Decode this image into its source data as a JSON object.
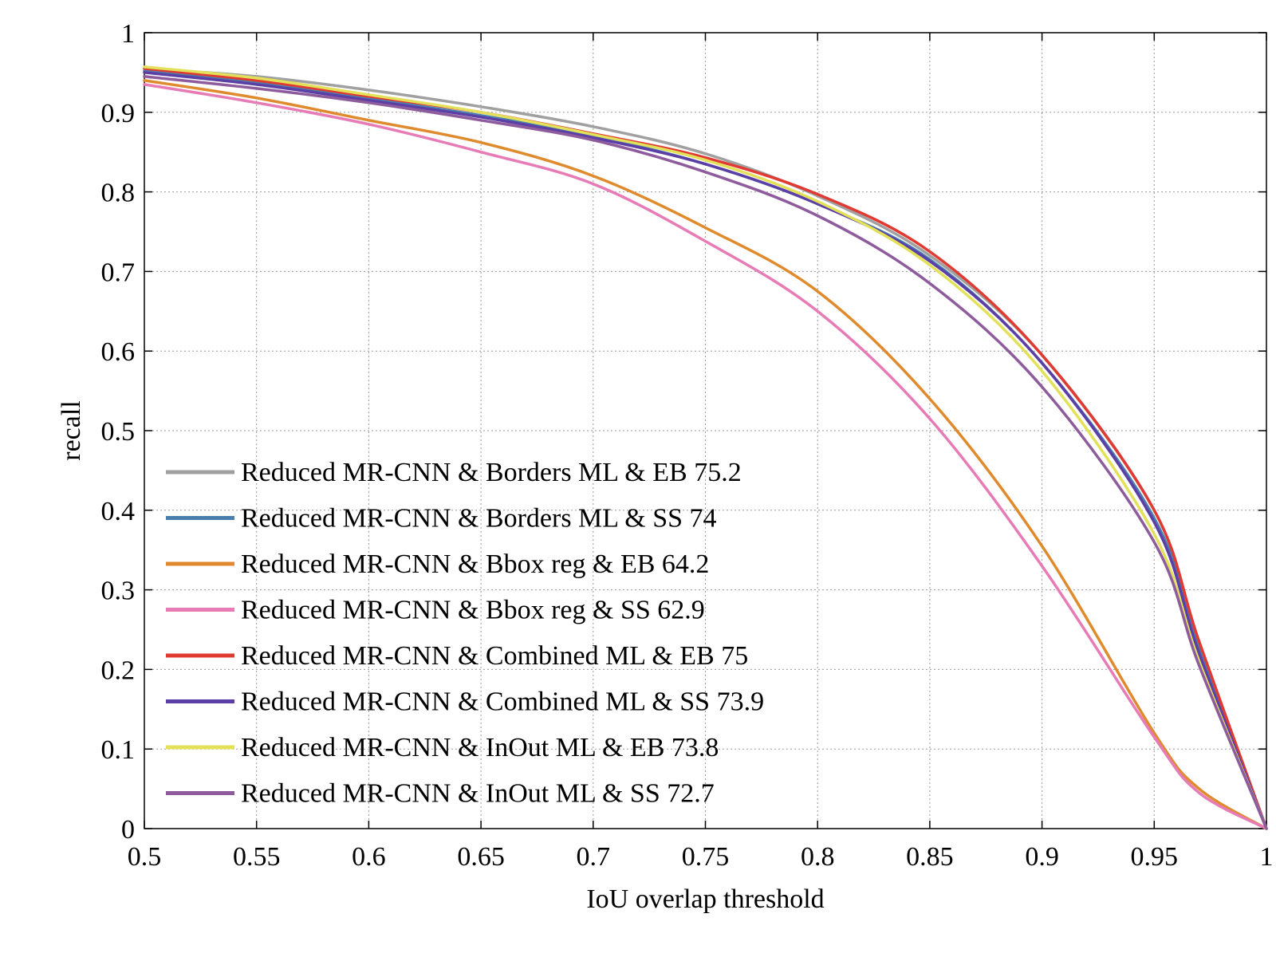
{
  "chart_data": {
    "type": "line",
    "title": "",
    "xlabel": "IoU overlap threshold",
    "ylabel": "recall",
    "xlim": [
      0.5,
      1
    ],
    "ylim": [
      0,
      1
    ],
    "grid": true,
    "legend_position": "bottom-left",
    "xticks": [
      0.5,
      0.55,
      0.6,
      0.65,
      0.7,
      0.75,
      0.8,
      0.85,
      0.9,
      0.95,
      1
    ],
    "xtick_labels": [
      "0.5",
      "0.55",
      "0.6",
      "0.65",
      "0.7",
      "0.75",
      "0.8",
      "0.85",
      "0.9",
      "0.95",
      "1"
    ],
    "yticks": [
      0,
      0.1,
      0.2,
      0.3,
      0.4,
      0.5,
      0.6,
      0.7,
      0.8,
      0.9,
      1
    ],
    "ytick_labels": [
      "0",
      "0.1",
      "0.2",
      "0.3",
      "0.4",
      "0.5",
      "0.6",
      "0.7",
      "0.8",
      "0.9",
      "1"
    ],
    "x": [
      0.5,
      0.55,
      0.6,
      0.65,
      0.7,
      0.75,
      0.8,
      0.85,
      0.9,
      0.95,
      0.97,
      1.0
    ],
    "series": [
      {
        "name": "Reduced MR-CNN & Borders ML & EB 75.2",
        "color": "#a0a0a0",
        "values": [
          0.955,
          0.945,
          0.928,
          0.907,
          0.882,
          0.848,
          0.795,
          0.72,
          0.595,
          0.4,
          0.23,
          0.0
        ]
      },
      {
        "name": "Reduced MR-CNN & Borders ML & SS 74",
        "color": "#4a7fad",
        "values": [
          0.952,
          0.937,
          0.917,
          0.896,
          0.87,
          0.835,
          0.785,
          0.715,
          0.585,
          0.39,
          0.225,
          0.0
        ]
      },
      {
        "name": "Reduced MR-CNN & Bbox reg & EB 64.2",
        "color": "#e08a2e",
        "values": [
          0.94,
          0.918,
          0.89,
          0.862,
          0.82,
          0.755,
          0.675,
          0.54,
          0.355,
          0.12,
          0.05,
          0.0
        ]
      },
      {
        "name": "Reduced MR-CNN & Bbox reg & SS 62.9",
        "color": "#e77bb5",
        "values": [
          0.935,
          0.912,
          0.885,
          0.85,
          0.81,
          0.738,
          0.65,
          0.515,
          0.33,
          0.115,
          0.045,
          0.0
        ]
      },
      {
        "name": "Reduced MR-CNN & Combined ML & EB 75",
        "color": "#e03a32",
        "values": [
          0.955,
          0.94,
          0.92,
          0.9,
          0.873,
          0.843,
          0.797,
          0.725,
          0.595,
          0.4,
          0.235,
          0.0
        ]
      },
      {
        "name": "Reduced MR-CNN & Combined ML & SS 73.9",
        "color": "#5b3ea6",
        "values": [
          0.95,
          0.935,
          0.915,
          0.894,
          0.868,
          0.835,
          0.785,
          0.713,
          0.585,
          0.385,
          0.22,
          0.0
        ]
      },
      {
        "name": "Reduced MR-CNN & InOut ML & EB 73.8",
        "color": "#e3e15a",
        "values": [
          0.957,
          0.943,
          0.922,
          0.9,
          0.872,
          0.84,
          0.788,
          0.708,
          0.575,
          0.37,
          0.21,
          0.0
        ]
      },
      {
        "name": "Reduced MR-CNN & InOut ML & SS 72.7",
        "color": "#8e5c9c",
        "values": [
          0.945,
          0.93,
          0.912,
          0.89,
          0.865,
          0.825,
          0.77,
          0.685,
          0.555,
          0.36,
          0.205,
          0.0
        ]
      }
    ]
  }
}
